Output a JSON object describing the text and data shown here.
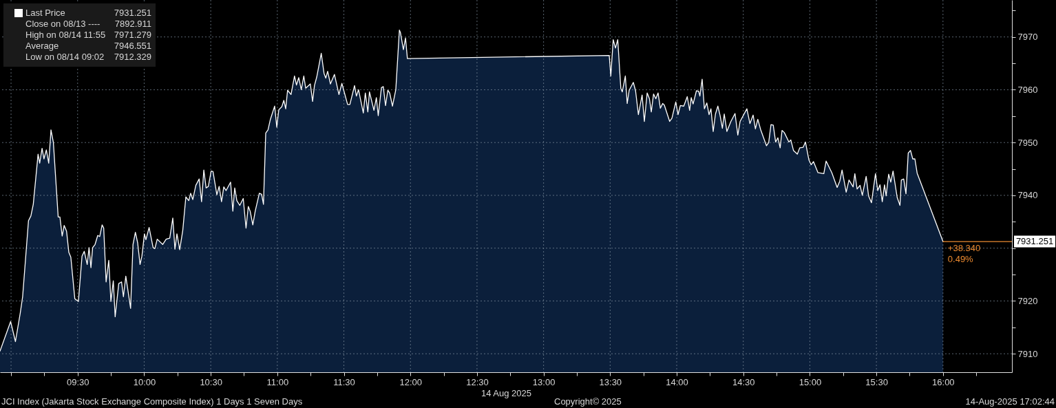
{
  "chart_data": {
    "type": "area",
    "xlabel": "14 Aug 2025",
    "xlim": [
      8.917,
      16.518
    ],
    "ylim": [
      7906.5,
      7977
    ],
    "xticks": [
      {
        "value": 9.0,
        "label": null
      },
      {
        "value": 9.25,
        "label": null
      },
      {
        "value": 9.5,
        "label": "09:30"
      },
      {
        "value": 9.75,
        "label": null
      },
      {
        "value": 10.0,
        "label": "10:00"
      },
      {
        "value": 10.25,
        "label": null
      },
      {
        "value": 10.5,
        "label": "10:30"
      },
      {
        "value": 10.75,
        "label": null
      },
      {
        "value": 11.0,
        "label": "11:00"
      },
      {
        "value": 11.25,
        "label": null
      },
      {
        "value": 11.5,
        "label": "11:30"
      },
      {
        "value": 11.75,
        "label": null
      },
      {
        "value": 12.0,
        "label": "12:00"
      },
      {
        "value": 12.25,
        "label": null
      },
      {
        "value": 12.5,
        "label": "12:30"
      },
      {
        "value": 12.75,
        "label": null
      },
      {
        "value": 13.0,
        "label": "13:00"
      },
      {
        "value": 13.25,
        "label": null
      },
      {
        "value": 13.5,
        "label": "13:30"
      },
      {
        "value": 13.75,
        "label": null
      },
      {
        "value": 14.0,
        "label": "14:00"
      },
      {
        "value": 14.25,
        "label": null
      },
      {
        "value": 14.5,
        "label": "14:30"
      },
      {
        "value": 14.75,
        "label": null
      },
      {
        "value": 15.0,
        "label": "15:00"
      },
      {
        "value": 15.25,
        "label": null
      },
      {
        "value": 15.5,
        "label": "15:30"
      },
      {
        "value": 15.75,
        "label": null
      },
      {
        "value": 16.0,
        "label": "16:00"
      },
      {
        "value": 16.25,
        "label": null
      }
    ],
    "yticks": [
      7910,
      {
        "value": 7915,
        "label": null
      },
      7920,
      {
        "value": 7925,
        "label": null
      },
      {
        "value": 7930,
        "label": null
      },
      {
        "value": 7935,
        "label": null
      },
      7940,
      {
        "value": 7945,
        "label": null
      },
      7950,
      {
        "value": 7955,
        "label": null
      },
      7960,
      {
        "value": 7965,
        "label": null
      },
      7970,
      {
        "value": 7975,
        "label": null
      }
    ],
    "grid": true,
    "legend": "top left",
    "series": [
      {
        "name": "Last Price",
        "color": "#ffffff",
        "x": [
          8.917,
          8.997,
          9.033,
          9.069,
          9.087,
          9.131,
          9.149,
          9.167,
          9.203,
          9.215,
          9.233,
          9.247,
          9.265,
          9.283,
          9.3,
          9.318,
          9.354,
          9.367,
          9.384,
          9.399,
          9.417,
          9.434,
          9.449,
          9.479,
          9.506,
          9.533,
          9.55,
          9.572,
          9.586,
          9.6,
          9.613,
          9.631,
          9.651,
          9.666,
          9.684,
          9.696,
          9.714,
          9.734,
          9.75,
          9.768,
          9.782,
          9.809,
          9.83,
          9.844,
          9.862,
          9.898,
          9.916,
          9.934,
          9.951,
          9.969,
          9.983,
          10.002,
          10.013,
          10.037,
          10.067,
          10.08,
          10.098,
          10.139,
          10.165,
          10.192,
          10.215,
          10.231,
          10.246,
          10.267,
          10.29,
          10.313,
          10.335,
          10.349,
          10.365,
          10.388,
          10.413,
          10.431,
          10.448,
          10.465,
          10.482,
          10.503,
          10.517,
          10.546,
          10.563,
          10.581,
          10.598,
          10.615,
          10.649,
          10.666,
          10.68,
          10.696,
          10.718,
          10.744,
          10.765,
          10.782,
          10.796,
          10.816,
          10.834,
          10.865,
          10.882,
          10.896,
          10.913,
          10.93,
          10.948,
          10.98,
          10.996,
          11.011,
          11.034,
          11.049,
          11.063,
          11.077,
          11.103,
          11.129,
          11.144,
          11.161,
          11.18,
          11.199,
          11.213,
          11.248,
          11.265,
          11.279,
          11.296,
          11.33,
          11.351,
          11.364,
          11.378,
          11.399,
          11.429,
          11.463,
          11.485,
          11.528,
          11.545,
          11.58,
          11.594,
          11.61,
          11.646,
          11.661,
          11.68,
          11.692,
          11.726,
          11.744,
          11.758,
          11.782,
          11.796,
          11.813,
          11.83,
          11.844,
          11.865,
          11.89,
          11.917,
          11.925,
          11.947,
          11.963,
          11.977,
          13.493,
          13.505,
          13.523,
          13.54,
          13.557,
          13.58,
          13.591,
          13.614,
          13.628,
          13.643,
          13.674,
          13.691,
          13.712,
          13.74,
          13.757,
          13.778,
          13.795,
          13.809,
          13.826,
          13.843,
          13.86,
          13.877,
          13.895,
          13.907,
          13.947,
          13.964,
          13.993,
          14.01,
          14.027,
          14.053,
          14.079,
          14.097,
          14.109,
          14.123,
          14.148,
          14.165,
          14.174,
          14.191,
          14.208,
          14.226,
          14.243,
          14.257,
          14.274,
          14.291,
          14.309,
          14.326,
          14.343,
          14.357,
          14.377,
          14.407,
          14.438,
          14.459,
          14.476,
          14.527,
          14.55,
          14.574,
          14.591,
          14.609,
          14.631,
          14.674,
          14.691,
          14.708,
          14.725,
          14.743,
          14.76,
          14.777,
          14.791,
          14.808,
          14.843,
          14.857,
          14.877,
          14.906,
          14.924,
          14.95,
          14.967,
          14.993,
          15.01,
          15.027,
          15.061,
          15.105,
          15.122,
          15.165,
          15.205,
          15.225,
          15.242,
          15.273,
          15.294,
          15.325,
          15.338,
          15.355,
          15.377,
          15.394,
          15.423,
          15.441,
          15.463,
          15.493,
          15.51,
          15.527,
          15.544,
          15.561,
          15.573,
          15.592,
          15.608,
          15.625,
          15.656,
          15.677,
          15.687,
          15.705,
          15.722,
          15.739,
          15.756,
          15.773,
          15.789,
          15.806,
          16.0
        ],
        "values": [
          7910.5,
          7916.1,
          7912.3,
          7917.7,
          7920.8,
          7935.2,
          7936.1,
          7938.3,
          7947.8,
          7946.1,
          7948.9,
          7946.9,
          7948.6,
          7946.1,
          7952.4,
          7950.0,
          7935.9,
          7935.9,
          7932.3,
          7934.3,
          7933.2,
          7929.2,
          7928.3,
          7920.4,
          7919.9,
          7928.5,
          7929.4,
          7926.9,
          7930.1,
          7926.3,
          7930.1,
          7930.7,
          7932.4,
          7932.2,
          7934.4,
          7933.8,
          7923.6,
          7927.7,
          7919.9,
          7923.8,
          7917.0,
          7923.3,
          7923.6,
          7920.8,
          7924.7,
          7918.6,
          7930.7,
          7933.0,
          7931.0,
          7926.9,
          7928.5,
          7932.7,
          7931.6,
          7933.9,
          7930.1,
          7929.9,
          7931.7,
          7930.7,
          7931.7,
          7931.9,
          7935.7,
          7929.8,
          7932.7,
          7929.7,
          7933.4,
          7939.7,
          7939.0,
          7940.4,
          7939.2,
          7941.9,
          7943.1,
          7938.8,
          7944.8,
          7941.4,
          7941.7,
          7944.6,
          7944.5,
          7940.1,
          7941.7,
          7938.8,
          7941.6,
          7940.9,
          7942.5,
          7937.0,
          7941.4,
          7939.0,
          7938.1,
          7939.4,
          7933.8,
          7937.9,
          7937.0,
          7934.4,
          7937.0,
          7940.4,
          7940.2,
          7938.3,
          7951.8,
          7952.4,
          7954.4,
          7956.9,
          7952.9,
          7956.2,
          7956.8,
          7958.0,
          7956.4,
          7959.9,
          7959.1,
          7962.6,
          7960.9,
          7962.3,
          7960.0,
          7962.6,
          7960.3,
          7961.1,
          7957.8,
          7960.8,
          7962.4,
          7966.9,
          7963.1,
          7962.2,
          7963.5,
          7961.1,
          7962.9,
          7959.1,
          7961.2,
          7957.2,
          7957.2,
          7960.8,
          7958.8,
          7960.0,
          7955.6,
          7959.4,
          7955.8,
          7959.6,
          7956.1,
          7958.5,
          7955.1,
          7960.4,
          7960.6,
          7957.0,
          7959.9,
          7959.4,
          7956.9,
          7960.0,
          7971.3,
          7970.8,
          7967.6,
          7969.8,
          7965.9,
          7966.5,
          7962.6,
          7969.5,
          7967.9,
          7969.5,
          7960.3,
          7959.6,
          7962.6,
          7957.4,
          7959.9,
          7961.4,
          7959.8,
          7955.3,
          7959.0,
          7954.0,
          7959.4,
          7958.3,
          7955.8,
          7959.2,
          7958.3,
          7959.4,
          7956.5,
          7957.4,
          7957.1,
          7954.0,
          7954.6,
          7957.7,
          7955.3,
          7957.0,
          7956.9,
          7958.7,
          7956.1,
          7958.5,
          7957.3,
          7959.8,
          7959.7,
          7958.8,
          7962.0,
          7956.4,
          7957.5,
          7955.3,
          7956.4,
          7952.1,
          7955.4,
          7956.9,
          7955.1,
          7952.7,
          7955.4,
          7952.1,
          7954.0,
          7955.5,
          7951.4,
          7954.0,
          7956.4,
          7953.6,
          7955.2,
          7952.6,
          7954.4,
          7952.4,
          7949.4,
          7950.0,
          7953.4,
          7953.3,
          7950.1,
          7950.9,
          7949.0,
          7952.3,
          7951.9,
          7950.1,
          7950.5,
          7948.5,
          7947.8,
          7949.0,
          7949.1,
          7950.1,
          7946.7,
          7945.8,
          7946.4,
          7944.3,
          7944.1,
          7946.5,
          7944.3,
          7941.5,
          7942.7,
          7944.8,
          7940.6,
          7942.9,
          7941.6,
          7944.1,
          7941.2,
          7941.9,
          7940.0,
          7943.6,
          7939.9,
          7938.6,
          7944.1,
          7940.9,
          7942.0,
          7938.8,
          7942.0,
          7939.9,
          7944.0,
          7942.5,
          7944.6,
          7939.6,
          7938.1,
          7942.9,
          7943.1,
          7940.3,
          7948.0,
          7948.5,
          7946.9,
          7946.9,
          7944.2,
          7931.251
        ]
      },
      {
        "type": "line",
        "color": "#ec8a30",
        "x": [
          16.0,
          16.518
        ],
        "values": [
          7931.251,
          7931.251
        ],
        "value_labels": [
          null,
          "7931.251"
        ]
      }
    ],
    "annotations": [
      "7931.251",
      "Close on 08/13 ----",
      "7892.911",
      "High on 08/14 11:55",
      "7971.279",
      "Average",
      "7946.551",
      "Low on 08/14 09:02",
      "7912.329",
      {
        "text": "+38.340",
        "x": 16.0,
        "y": 7931.251
      },
      {
        "text": "0.49%",
        "x": 16.0,
        "y": 7931.251
      },
      "JCI Index (Jakarta Stock Exchange Composite Index) 1 Days 1 Seven Days",
      "Copyright© 2025",
      "14-Aug-2025 17:02:44"
    ]
  }
}
